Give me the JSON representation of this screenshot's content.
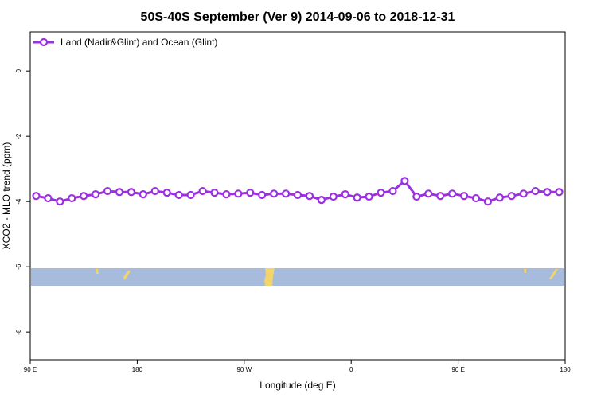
{
  "chart_data": {
    "type": "line",
    "title": "50S-40S September (Ver 9)   2014-09-06 to 2018-12-31",
    "x_label": "Longitude (deg E)",
    "y_label": "XCO2 - MLO trend (ppm)",
    "x": [
      95,
      105,
      115,
      125,
      135,
      145,
      155,
      165,
      175,
      185,
      195,
      205,
      215,
      225,
      235,
      245,
      255,
      265,
      275,
      285,
      295,
      305,
      315,
      325,
      335,
      345,
      355,
      365,
      375,
      385,
      395,
      405,
      415,
      425,
      435,
      445,
      455,
      465,
      475,
      485,
      495,
      505,
      515,
      525,
      535
    ],
    "series": [
      {
        "name": "Land (Nadir&Glint) and Ocean (Glint)",
        "color": "#9b30e0",
        "values": [
          -3.83,
          -3.9,
          -4.0,
          -3.9,
          -3.83,
          -3.78,
          -3.68,
          -3.71,
          -3.71,
          -3.78,
          -3.68,
          -3.73,
          -3.8,
          -3.8,
          -3.68,
          -3.73,
          -3.78,
          -3.76,
          -3.73,
          -3.8,
          -3.76,
          -3.76,
          -3.8,
          -3.83,
          -3.95,
          -3.85,
          -3.78,
          -3.88,
          -3.85,
          -3.73,
          -3.68,
          -3.37,
          -3.85,
          -3.76,
          -3.83,
          -3.76,
          -3.83,
          -3.9,
          -4.0,
          -3.88,
          -3.83,
          -3.76,
          -3.68,
          -3.71,
          -3.71
        ]
      }
    ],
    "xlim": [
      90,
      540
    ],
    "xticks": [
      {
        "value": 90,
        "label": "90 E"
      },
      180,
      {
        "value": 270,
        "label": "90 W"
      },
      {
        "value": 360,
        "label": "0"
      },
      {
        "value": 450,
        "label": "90 E"
      },
      {
        "value": 540,
        "label": "180"
      }
    ],
    "ylim": [
      -8.85,
      1.2
    ],
    "yticks": [
      0,
      -2,
      -4,
      -6,
      -8
    ],
    "legend": "top-left"
  }
}
